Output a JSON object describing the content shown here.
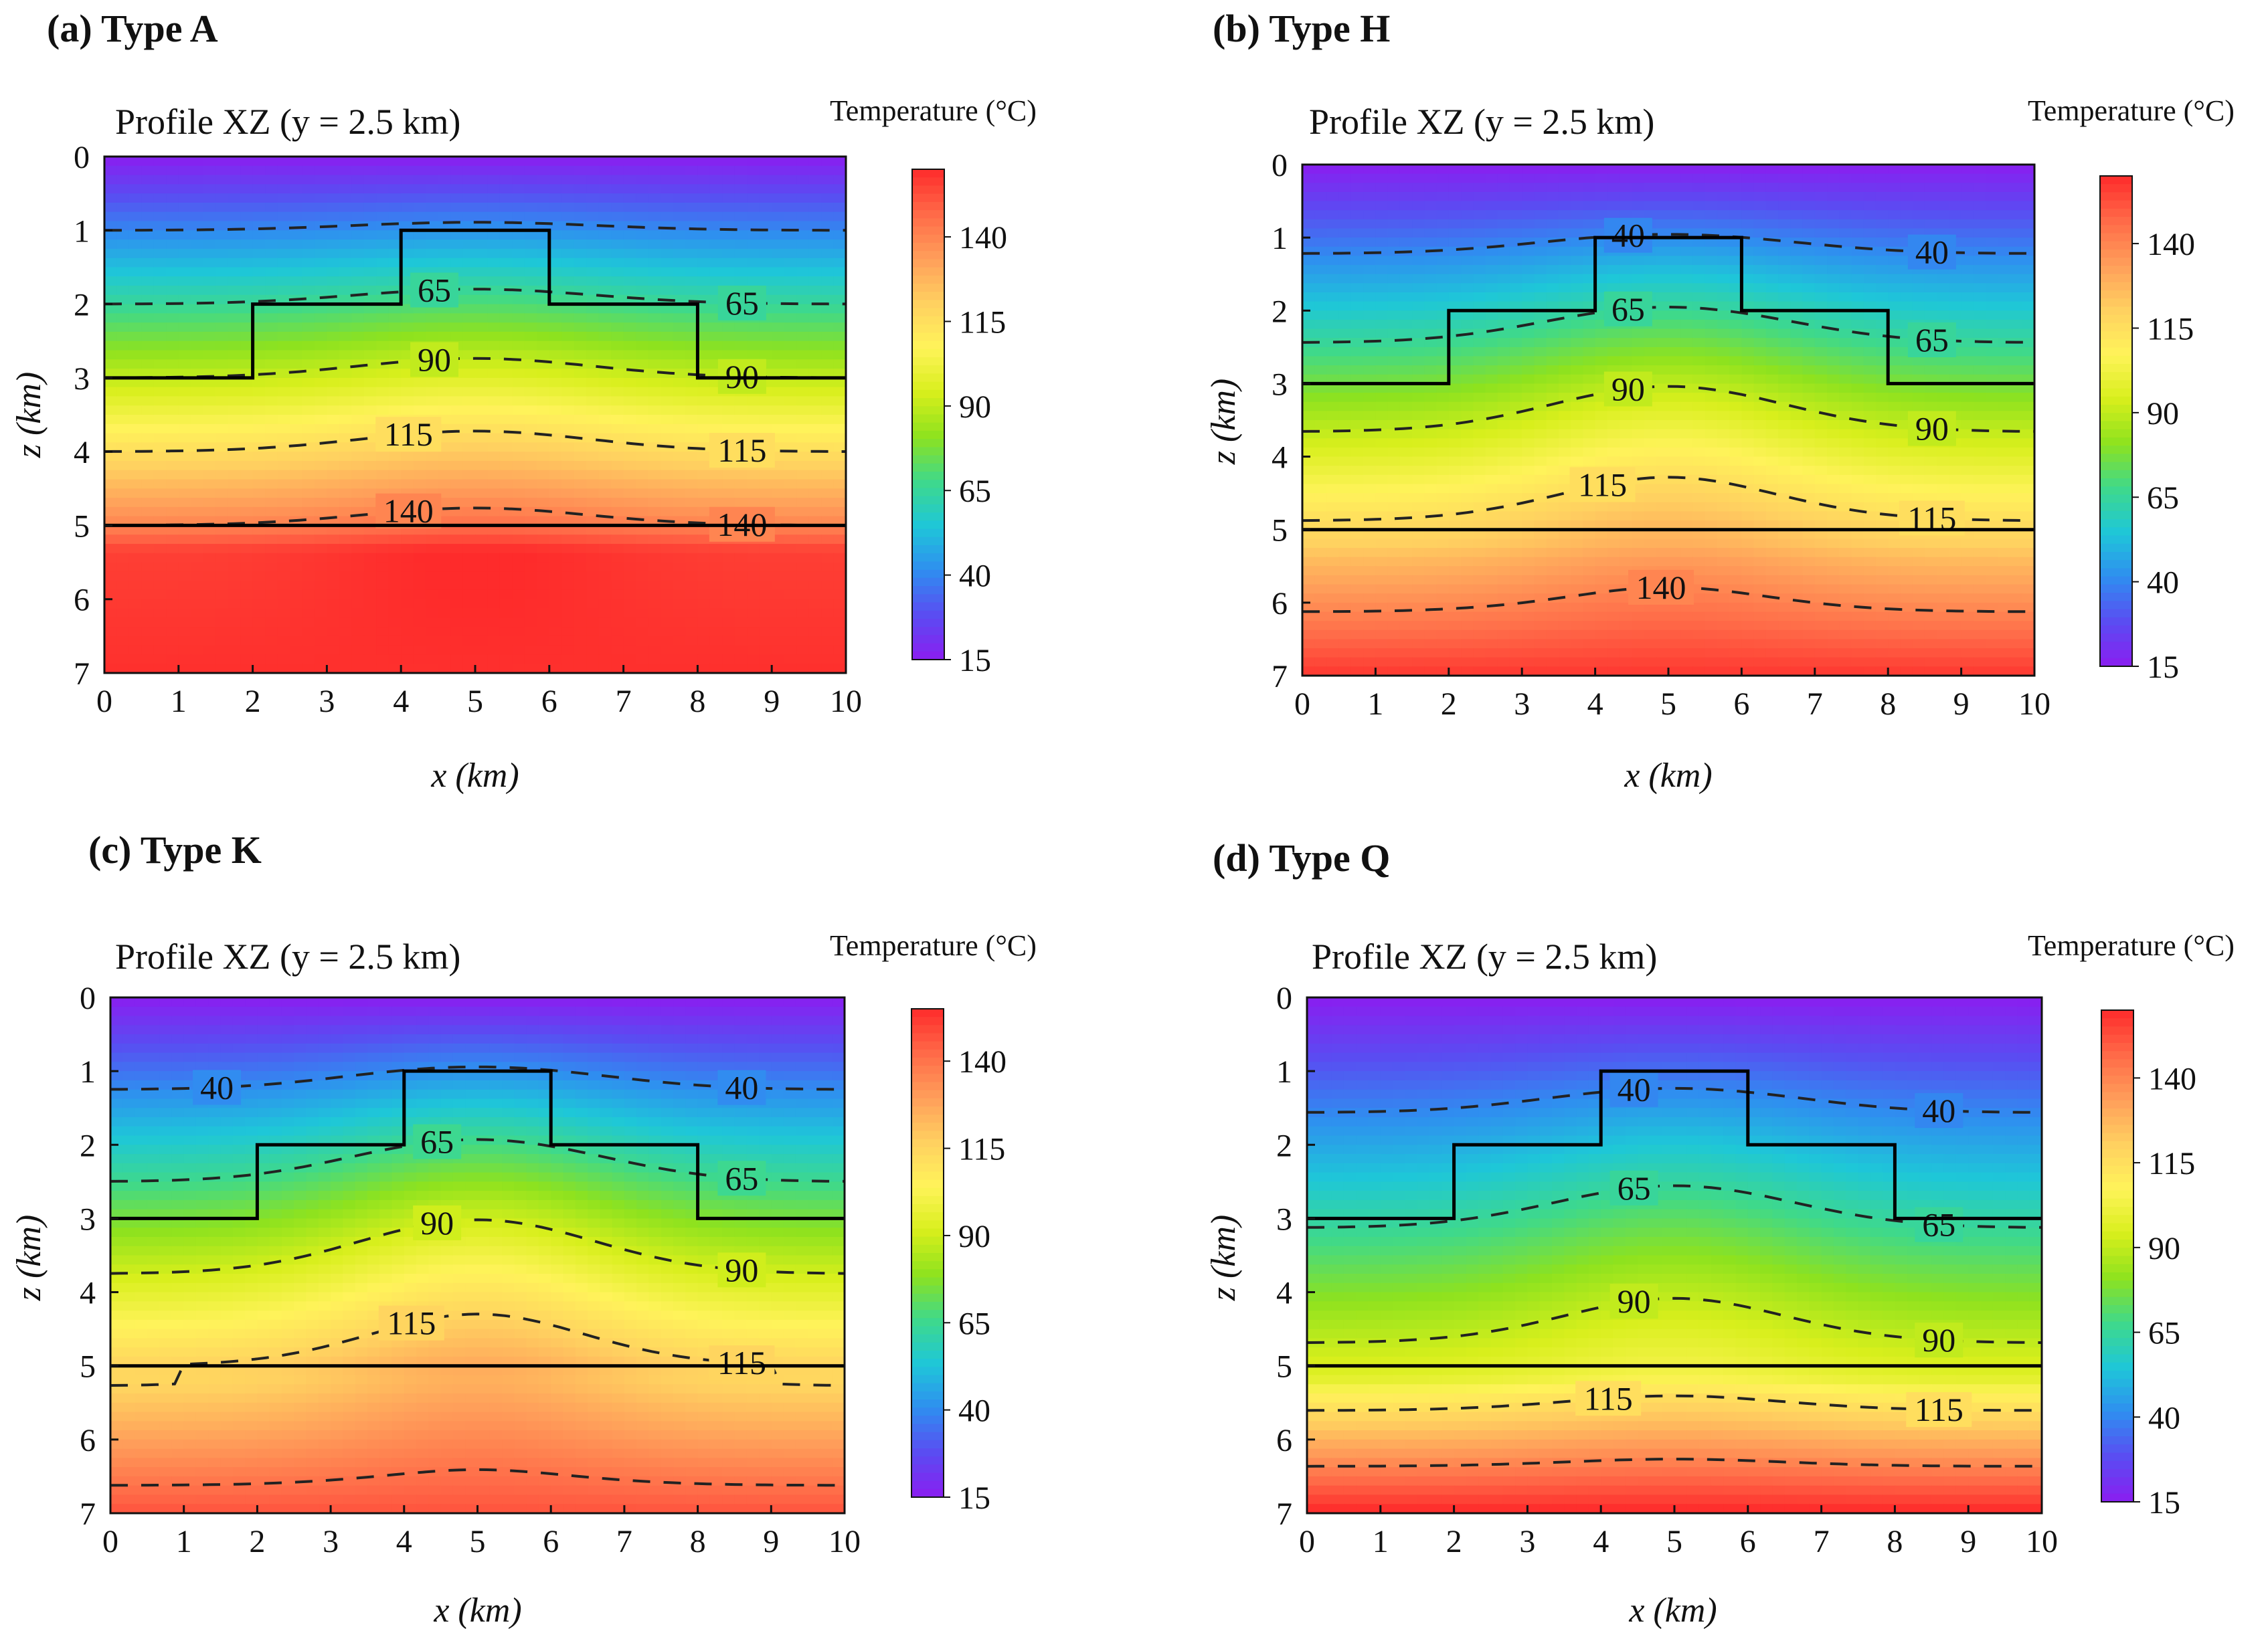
{
  "figure": {
    "profile_title": "Profile XZ (y = 2.5 km)",
    "colorbar_title": "Temperature (°C)"
  },
  "panels": [
    {
      "label": "(a) Type A",
      "colormap": [
        "#8a1ef0",
        "#5a4cf2",
        "#2f8ef0",
        "#1ec7d8",
        "#3fd98a",
        "#8ee21e",
        "#d8ef1c",
        "#fff35a",
        "#ffd060",
        "#ff9e5a",
        "#ff6a48",
        "#fe2b2b"
      ],
      "chart_data": {
        "type": "heatmap",
        "title": "Profile XZ (y = 2.5 km)",
        "xlabel": "x (km)",
        "ylabel": "z (km)",
        "xlim": [
          0,
          10
        ],
        "ylim": [
          0,
          7
        ],
        "x_ticks": [
          "0",
          "1",
          "2",
          "3",
          "4",
          "5",
          "6",
          "7",
          "8",
          "9",
          "10"
        ],
        "y_ticks": [
          "0",
          "1",
          "2",
          "3",
          "4",
          "5",
          "6",
          "7"
        ],
        "colorbar": {
          "title": "Temperature (°C)",
          "range": [
            15,
            160
          ],
          "ticks": [
            "15",
            "40",
            "65",
            "90",
            "115",
            "140"
          ]
        },
        "field": {
          "surface_temp": 15,
          "interface_depth": 5,
          "shallow_gradient": 25,
          "deep_temp": 155,
          "deep_gradient": 2,
          "anomaly_amp": 7,
          "anomaly_center": 5,
          "anomaly_width": 2.2
        },
        "structure_boundary": {
          "x": [
            0,
            2,
            2,
            4,
            4,
            6,
            6,
            8,
            8,
            10
          ],
          "z": [
            3,
            3,
            2,
            2,
            1,
            1,
            2,
            2,
            3,
            3
          ]
        },
        "interface_line": 5,
        "contours": [
          {
            "level": 40,
            "labels": []
          },
          {
            "level": 65,
            "labels": [
              {
                "text": "65",
                "x": 4.45
              },
              {
                "text": "65",
                "x": 8.6
              }
            ]
          },
          {
            "level": 90,
            "labels": [
              {
                "text": "90",
                "x": 4.45
              },
              {
                "text": "90",
                "x": 8.6
              }
            ]
          },
          {
            "level": 115,
            "labels": [
              {
                "text": "115",
                "x": 4.1
              },
              {
                "text": "115",
                "x": 8.6
              }
            ]
          },
          {
            "level": 140,
            "labels": [
              {
                "text": "140",
                "x": 4.1
              },
              {
                "text": "140",
                "x": 8.6
              }
            ]
          }
        ]
      }
    },
    {
      "label": "(b) Type H",
      "colormap": [
        "#8a1ef0",
        "#5a4cf2",
        "#2f8ef0",
        "#1ec7d8",
        "#3fd98a",
        "#8ee21e",
        "#d8ef1c",
        "#fff35a",
        "#ffd060",
        "#ff9e5a",
        "#ff6a48",
        "#fe2b2b"
      ],
      "chart_data": {
        "type": "heatmap",
        "title": "Profile XZ (y = 2.5 km)",
        "xlabel": "x (km)",
        "ylabel": "z (km)",
        "xlim": [
          0,
          10
        ],
        "ylim": [
          0,
          7
        ],
        "x_ticks": [
          "0",
          "1",
          "2",
          "3",
          "4",
          "5",
          "6",
          "7",
          "8",
          "9",
          "10"
        ],
        "y_ticks": [
          "0",
          "1",
          "2",
          "3",
          "4",
          "5",
          "6",
          "7"
        ],
        "colorbar": {
          "title": "Temperature (°C)",
          "range": [
            15,
            160
          ],
          "ticks": [
            "15",
            "40",
            "65",
            "90",
            "115",
            "140"
          ]
        },
        "field": {
          "surface_temp": 15,
          "interface_depth": 5,
          "shallow_gradient": 20.5,
          "deep_temp": 117.5,
          "deep_gradient": 20,
          "anomaly_amp": 13,
          "anomaly_center": 5,
          "anomaly_width": 2.2
        },
        "structure_boundary": {
          "x": [
            0,
            2,
            2,
            4,
            4,
            6,
            6,
            8,
            8,
            10
          ],
          "z": [
            3,
            3,
            2,
            2,
            1,
            1,
            2,
            2,
            3,
            3
          ]
        },
        "interface_line": 5,
        "contours": [
          {
            "level": 40,
            "labels": [
              {
                "text": "40",
                "x": 4.45
              },
              {
                "text": "40",
                "x": 8.6
              }
            ]
          },
          {
            "level": 65,
            "labels": [
              {
                "text": "65",
                "x": 4.45
              },
              {
                "text": "65",
                "x": 8.6
              }
            ]
          },
          {
            "level": 90,
            "labels": [
              {
                "text": "90",
                "x": 4.45
              },
              {
                "text": "90",
                "x": 8.6
              }
            ]
          },
          {
            "level": 115,
            "labels": [
              {
                "text": "115",
                "x": 4.1
              },
              {
                "text": "115",
                "x": 8.6
              }
            ]
          },
          {
            "level": 140,
            "labels": [
              {
                "text": "140",
                "x": 4.9
              }
            ]
          }
        ]
      }
    },
    {
      "label": "(c) Type K",
      "colormap": [
        "#8a1ef0",
        "#5a4cf2",
        "#2f8ef0",
        "#1ec7d8",
        "#3fd98a",
        "#8ee21e",
        "#d8ef1c",
        "#fff35a",
        "#ffd060",
        "#ff9e5a",
        "#ff6a48",
        "#fe2b2b"
      ],
      "chart_data": {
        "type": "heatmap",
        "title": "Profile XZ (y = 2.5 km)",
        "xlabel": "x (km)",
        "ylabel": "z (km)",
        "xlim": [
          0,
          10
        ],
        "ylim": [
          0,
          7
        ],
        "x_ticks": [
          "0",
          "1",
          "2",
          "3",
          "4",
          "5",
          "6",
          "7",
          "8",
          "9",
          "10"
        ],
        "y_ticks": [
          "0",
          "1",
          "2",
          "3",
          "4",
          "5",
          "6",
          "7"
        ],
        "colorbar": {
          "title": "Temperature (°C)",
          "range": [
            15,
            155
          ],
          "ticks": [
            "15",
            "40",
            "65",
            "90",
            "115",
            "140"
          ]
        },
        "field": {
          "surface_temp": 15,
          "interface_depth": 5,
          "shallow_gradient": 20,
          "deep_temp": 110,
          "deep_gradient": 18.5,
          "anomaly_amp": 15,
          "anomaly_center": 5,
          "anomaly_width": 2.2
        },
        "structure_boundary": {
          "x": [
            0,
            2,
            2,
            4,
            4,
            6,
            6,
            8,
            8,
            10
          ],
          "z": [
            3,
            3,
            2,
            2,
            1,
            1,
            2,
            2,
            3,
            3
          ]
        },
        "interface_line": 5,
        "contours": [
          {
            "level": 40,
            "labels": [
              {
                "text": "40",
                "x": 1.45
              },
              {
                "text": "40",
                "x": 8.6
              }
            ]
          },
          {
            "level": 65,
            "labels": [
              {
                "text": "65",
                "x": 4.45
              },
              {
                "text": "65",
                "x": 8.6
              }
            ]
          },
          {
            "level": 90,
            "labels": [
              {
                "text": "90",
                "x": 4.45
              },
              {
                "text": "90",
                "x": 8.6
              }
            ]
          },
          {
            "level": 115,
            "labels": [
              {
                "text": "115",
                "x": 4.1
              },
              {
                "text": "115",
                "x": 8.6
              }
            ]
          },
          {
            "level": 140,
            "labels": []
          }
        ]
      }
    },
    {
      "label": "(d) Type Q",
      "colormap": [
        "#8a1ef0",
        "#5a4cf2",
        "#2f8ef0",
        "#1ec7d8",
        "#3fd98a",
        "#8ee21e",
        "#d8ef1c",
        "#fff35a",
        "#ffd060",
        "#ff9e5a",
        "#ff6a48",
        "#fe2b2b"
      ],
      "chart_data": {
        "type": "heatmap",
        "title": "Profile XZ (y = 2.5 km)",
        "xlabel": "x (km)",
        "ylabel": "z (km)",
        "xlim": [
          0,
          10
        ],
        "ylim": [
          0,
          7
        ],
        "x_ticks": [
          "0",
          "1",
          "2",
          "3",
          "4",
          "5",
          "6",
          "7",
          "8",
          "9",
          "10"
        ],
        "y_ticks": [
          "0",
          "1",
          "2",
          "3",
          "4",
          "5",
          "6",
          "7"
        ],
        "colorbar": {
          "title": "Temperature (°C)",
          "range": [
            15,
            160
          ],
          "ticks": [
            "15",
            "40",
            "65",
            "90",
            "115",
            "140"
          ]
        },
        "field": {
          "surface_temp": 15,
          "interface_depth": 5,
          "shallow_gradient": 16,
          "deep_temp": 95,
          "deep_gradient": 33,
          "anomaly_amp": 10,
          "anomaly_center": 5,
          "anomaly_width": 2.2
        },
        "structure_boundary": {
          "x": [
            0,
            2,
            2,
            4,
            4,
            6,
            6,
            8,
            8,
            10
          ],
          "z": [
            3,
            3,
            2,
            2,
            1,
            1,
            2,
            2,
            3,
            3
          ]
        },
        "interface_line": 5,
        "contours": [
          {
            "level": 40,
            "labels": [
              {
                "text": "40",
                "x": 4.45
              },
              {
                "text": "40",
                "x": 8.6
              }
            ]
          },
          {
            "level": 65,
            "labels": [
              {
                "text": "65",
                "x": 4.45
              },
              {
                "text": "65",
                "x": 8.6
              }
            ]
          },
          {
            "level": 90,
            "labels": [
              {
                "text": "90",
                "x": 4.45
              },
              {
                "text": "90",
                "x": 8.6
              }
            ]
          },
          {
            "level": 115,
            "labels": [
              {
                "text": "115",
                "x": 4.1
              },
              {
                "text": "115",
                "x": 8.6
              }
            ]
          },
          {
            "level": 140,
            "labels": []
          }
        ]
      }
    }
  ]
}
